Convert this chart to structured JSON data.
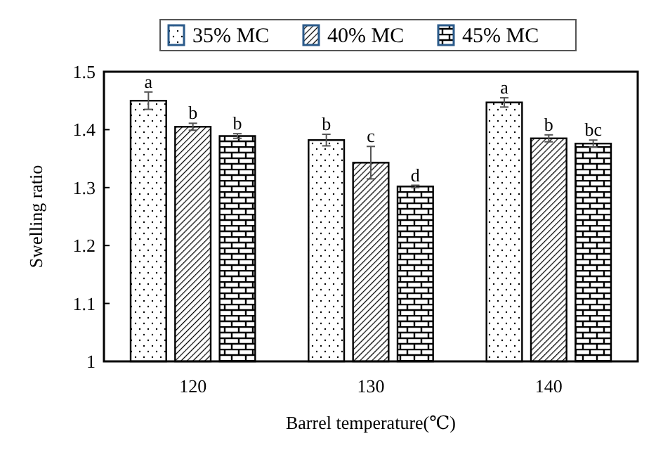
{
  "chart_data": {
    "type": "bar",
    "xlabel": "Barrel temperature(℃)",
    "ylabel": "Swelling ratio",
    "categories": [
      "120",
      "130",
      "140"
    ],
    "ylim": [
      1,
      1.5
    ],
    "yticks": [
      1,
      1.1,
      1.2,
      1.3,
      1.4,
      1.5
    ],
    "legend": "top",
    "grid": false,
    "series": [
      {
        "name": "35% MC",
        "color": "#000000",
        "values": [
          1.45,
          1.382,
          1.447
        ],
        "errors": [
          0.015,
          0.01,
          0.008
        ],
        "value_labels": [
          "a",
          "b",
          "a"
        ]
      },
      {
        "name": "40% MC",
        "color": "#000000",
        "values": [
          1.405,
          1.343,
          1.385
        ],
        "errors": [
          0.006,
          0.028,
          0.006
        ],
        "value_labels": [
          "b",
          "c",
          "b"
        ]
      },
      {
        "name": "45% MC",
        "color": "#000000",
        "values": [
          1.389,
          1.302,
          1.376
        ],
        "errors": [
          0.004,
          0.002,
          0.006
        ],
        "value_labels": [
          "b",
          "d",
          "bc"
        ]
      }
    ]
  }
}
